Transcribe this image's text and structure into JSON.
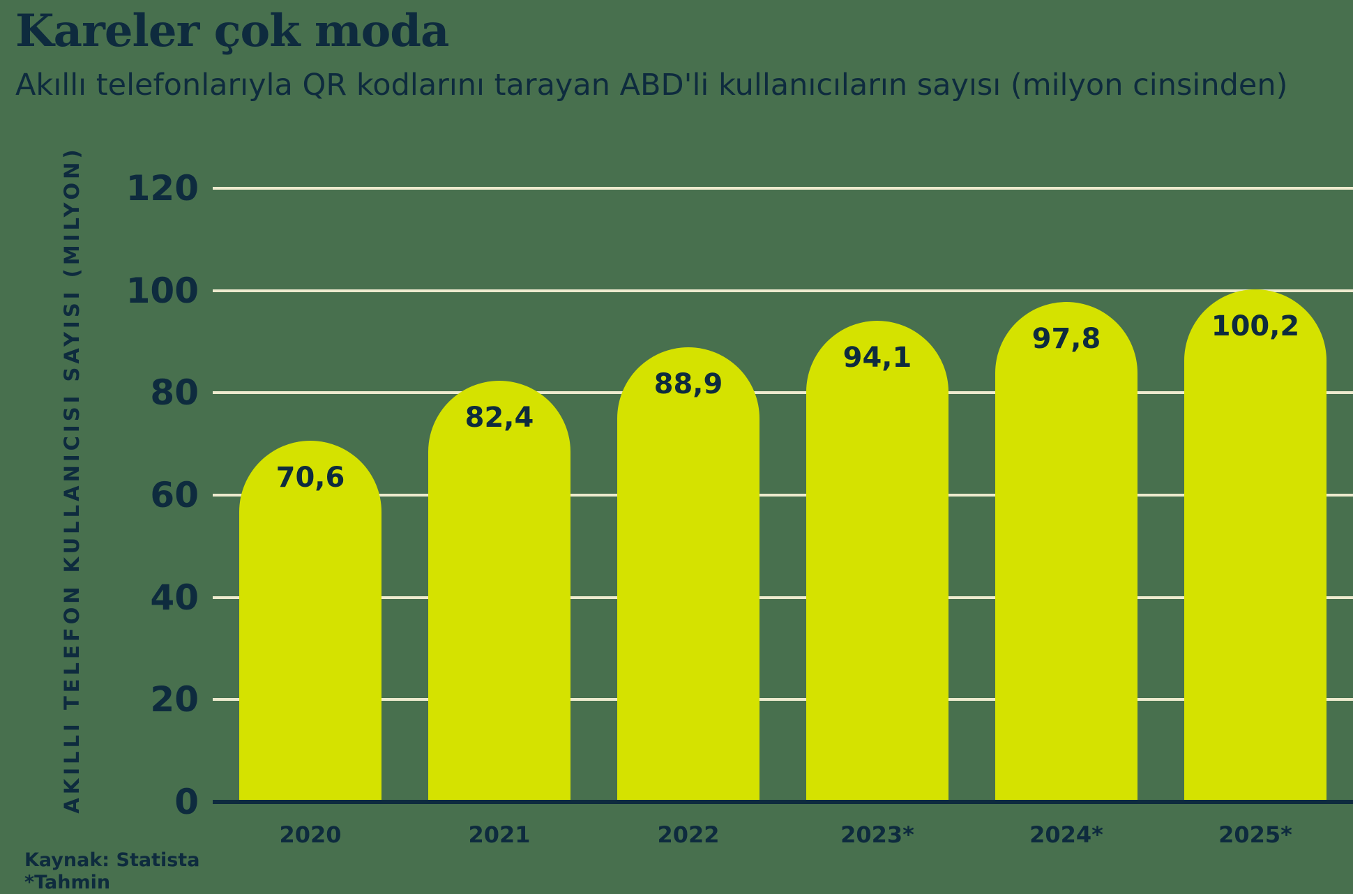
{
  "header": {
    "title": "Kareler çok moda",
    "subtitle": "Akıllı telefonlarıyla QR kodlarını tarayan ABD'li kullanıcıların sayısı (milyon cinsinden)"
  },
  "chart_data": {
    "type": "bar",
    "title": "Kareler çok moda",
    "subtitle": "Akıllı telefonlarıyla QR kodlarını tarayan ABD'li kullanıcıların sayısı (milyon cinsinden)",
    "categories": [
      "2020",
      "2021",
      "2022",
      "2023*",
      "2024*",
      "2025*"
    ],
    "values": [
      70.6,
      82.4,
      88.9,
      94.1,
      97.8,
      100.2
    ],
    "value_labels": [
      "70,6",
      "82,4",
      "88,9",
      "94,1",
      "97,8",
      "100,2"
    ],
    "xlabel": "",
    "ylabel": "AKILLI TELEFON KULLANICISI SAYISI (MILYON)",
    "ylim": [
      0,
      120
    ],
    "yticks": [
      0,
      20,
      40,
      60,
      80,
      100,
      120
    ],
    "grid": true,
    "legend_position": "none",
    "bar_shape": "rounded-top"
  },
  "footer": {
    "source": "Kaynak: Statista",
    "note": "*Tahmin"
  },
  "colors": {
    "background": "#48704E",
    "bar": "#D5E200",
    "text": "#0E2B3E",
    "gridline": "#EDEACE",
    "axis": "#0E2B3E"
  }
}
